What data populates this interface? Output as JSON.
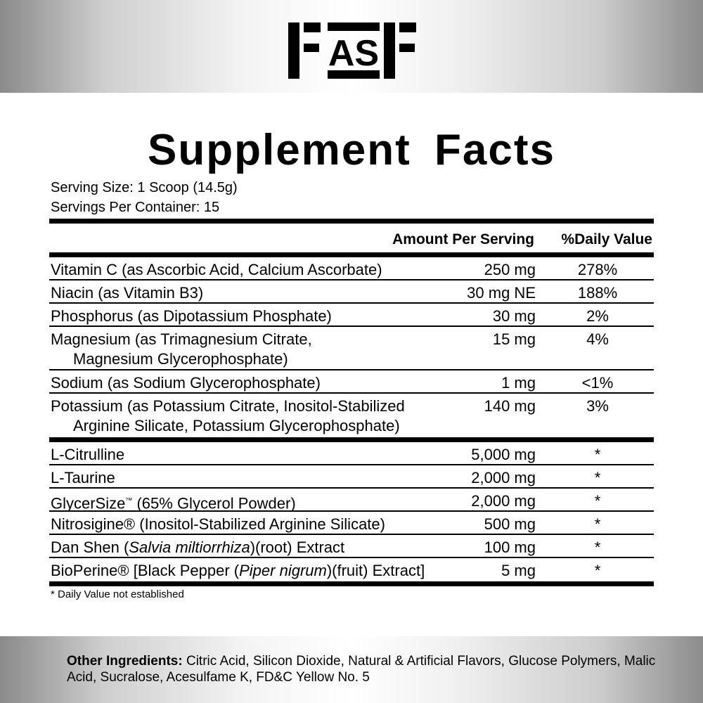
{
  "logo": {
    "text": "FASF",
    "color": "#000000"
  },
  "title": "Supplement Facts",
  "serving_size": "Serving Size: 1 Scoop (14.5g)",
  "servings_per_container": "Servings Per Container: 15",
  "header": {
    "amount": "Amount Per Serving",
    "dv": "%Daily Value"
  },
  "vitamins": [
    {
      "name": "Vitamin C (as Ascorbic Acid, Calcium Ascorbate)",
      "amount": "250 mg",
      "dv": "278%"
    },
    {
      "name": "Niacin (as Vitamin B3)",
      "amount": "30 mg NE",
      "dv": "188%"
    },
    {
      "name": "Phosphorus (as Dipotassium Phosphate)",
      "amount": "30 mg",
      "dv": "2%"
    },
    {
      "name": "Magnesium (as Trimagnesium Citrate,",
      "name2": "Magnesium Glycerophosphate)",
      "amount": "15 mg",
      "dv": "4%"
    },
    {
      "name": "Sodium (as Sodium Glycerophosphate)",
      "amount": "1 mg",
      "dv": "<1%"
    },
    {
      "name": "Potassium (as Potassium Citrate, Inositol-Stabilized",
      "name2": "Arginine Silicate, Potassium Glycerophosphate)",
      "amount": "140 mg",
      "dv": "3%"
    }
  ],
  "ingredients": [
    {
      "name": "L-Citrulline",
      "amount": "5,000 mg",
      "dv": "*"
    },
    {
      "name": "L-Taurine",
      "amount": "2,000 mg",
      "dv": "*"
    },
    {
      "name": "GlycerSize",
      "sup": "™",
      "post": " (65% Glycerol Powder)",
      "amount": "2,000 mg",
      "dv": "*"
    },
    {
      "name": "Nitrosigine® (Inositol-Stabilized Arginine Silicate)",
      "amount": "500 mg",
      "dv": "*"
    },
    {
      "name": "Dan Shen (",
      "italic": "Salvia miltiorrhiza",
      "post": ")(root) Extract",
      "amount": "100 mg",
      "dv": "*"
    },
    {
      "name": "BioPerine® [Black Pepper (",
      "italic": "Piper nigrum",
      "post": ")(fruit) Extract]",
      "amount": "5 mg",
      "dv": "*"
    }
  ],
  "footnote": "* Daily Value not established",
  "other_ingredients": {
    "label": "Other Ingredients:",
    "text": " Citric Acid, Silicon Dioxide, Natural & Artificial Flavors, Glucose Polymers, Malic Acid, Sucralose, Acesulfame K, FD&C Yellow No. 5"
  }
}
